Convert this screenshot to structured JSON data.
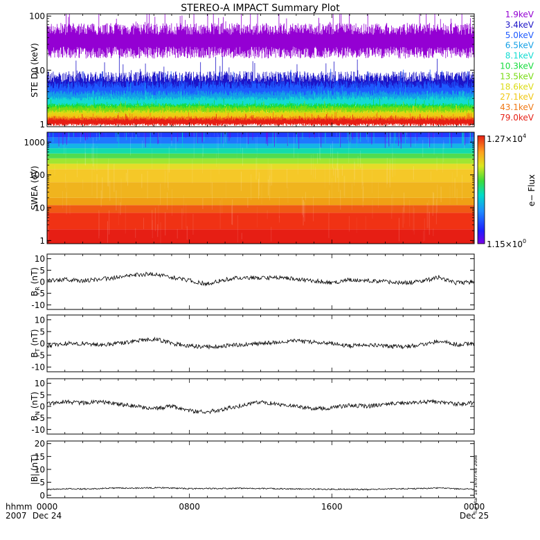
{
  "title": "STEREO-A IMPACT Summary Plot",
  "timestamp": "Tue Mar 18 16:07:48 2008",
  "time_axis": {
    "row1_label": "hhmm",
    "row2_label": "2007",
    "ticks": [
      {
        "hours": 0,
        "label": "0000",
        "sublabel": "Dec 24"
      },
      {
        "hours": 8,
        "label": "0800",
        "sublabel": ""
      },
      {
        "hours": 16,
        "label": "1600",
        "sublabel": ""
      },
      {
        "hours": 24,
        "label": "0000",
        "sublabel": "Dec 25"
      }
    ],
    "range_hours": [
      0,
      24
    ]
  },
  "colorbar": {
    "label": "e− Flux",
    "max_label": "1.27×10",
    "max_exp": "4",
    "min_label": "1.15×10",
    "min_exp": "0"
  },
  "chart_data": [
    {
      "type": "line",
      "ylabel": "STE D0 (keV)",
      "yscale": "log",
      "ylim": [
        0.9,
        110
      ],
      "yticks": [
        {
          "v": 1,
          "label": "1"
        },
        {
          "v": 10,
          "label": "10"
        },
        {
          "v": 100,
          "label": "100"
        }
      ],
      "series": [
        {
          "name": "1.9keV",
          "color": "#9400D3",
          "level": 35,
          "spread": 0.22
        },
        {
          "name": "3.4keV",
          "color": "#1c14c8",
          "level": 4.8,
          "spread": 0.2
        },
        {
          "name": "5.0keV",
          "color": "#1e5aff",
          "level": 3.8,
          "spread": 0.15
        },
        {
          "name": "6.5keV",
          "color": "#14a0e6",
          "level": 3.0,
          "spread": 0.1
        },
        {
          "name": "8.1keV",
          "color": "#14dcd2",
          "level": 2.5,
          "spread": 0.08
        },
        {
          "name": "10.3keV",
          "color": "#14dc3c",
          "level": 2.0,
          "spread": 0.06
        },
        {
          "name": "13.5keV",
          "color": "#78dc14",
          "level": 1.8,
          "spread": 0.06
        },
        {
          "name": "18.6keV",
          "color": "#dcdc14",
          "level": 1.5,
          "spread": 0.06
        },
        {
          "name": "27.1keV",
          "color": "#f0c814",
          "level": 1.35,
          "spread": 0.06
        },
        {
          "name": "43.1keV",
          "color": "#f07814",
          "level": 1.2,
          "spread": 0.05
        },
        {
          "name": "79.0keV",
          "color": "#e61e14",
          "level": 1.1,
          "spread": 0.05
        }
      ]
    },
    {
      "type": "heatmap",
      "ylabel": "SWEA (eV)",
      "yscale": "log",
      "ylim": [
        0.8,
        2000
      ],
      "yticks": [
        {
          "v": 1,
          "label": "1"
        },
        {
          "v": 10,
          "label": "10"
        },
        {
          "v": 100,
          "label": "100"
        },
        {
          "v": 1000,
          "label": "1000"
        }
      ],
      "zscale": "log",
      "zlim": [
        1.15,
        12700
      ],
      "description_bands": [
        {
          "energy_range": [
            0.8,
            12
          ],
          "level": "red"
        },
        {
          "energy_range": [
            12,
            200
          ],
          "level": "orange-yellow"
        },
        {
          "energy_range": [
            200,
            700
          ],
          "level": "green"
        },
        {
          "energy_range": [
            700,
            2000
          ],
          "level": "blue"
        }
      ]
    },
    {
      "type": "line",
      "ylabel": "B",
      "ysub": "R",
      "yunit": " (nT)",
      "ylim": [
        -12,
        12
      ],
      "yticks": [
        -10,
        -5,
        0,
        5,
        10
      ],
      "series": [
        {
          "x": [
            0,
            1,
            2,
            3,
            4,
            5,
            6,
            7,
            8,
            9,
            10,
            11,
            12,
            13,
            14,
            15,
            16,
            17,
            18,
            19,
            20,
            21,
            22,
            23,
            24
          ],
          "y": [
            0.5,
            1,
            0.5,
            1,
            2,
            3,
            3.5,
            2,
            0.5,
            -1,
            1,
            2,
            1.5,
            2,
            1,
            0.5,
            -0.5,
            1,
            0.5,
            0,
            -0.5,
            0,
            2,
            -0.5,
            0
          ]
        }
      ]
    },
    {
      "type": "line",
      "ylabel": "B",
      "ysub": "T",
      "yunit": " (nT)",
      "ylim": [
        -12,
        12
      ],
      "yticks": [
        -10,
        -5,
        0,
        5,
        10
      ],
      "series": [
        {
          "x": [
            0,
            1,
            2,
            3,
            4,
            5,
            6,
            7,
            8,
            9,
            10,
            11,
            12,
            13,
            14,
            15,
            16,
            17,
            18,
            19,
            20,
            21,
            22,
            23,
            24
          ],
          "y": [
            -1,
            0,
            0,
            -0.5,
            0,
            1,
            2,
            0,
            -1,
            -1.5,
            -1,
            -0.5,
            0,
            0.5,
            1,
            0.5,
            0,
            -1,
            -0.5,
            -1,
            -1.5,
            -0.5,
            1,
            -0.5,
            0
          ]
        }
      ]
    },
    {
      "type": "line",
      "ylabel": "B",
      "ysub": "N",
      "yunit": " (nT)",
      "ylim": [
        -12,
        12
      ],
      "yticks": [
        -10,
        -5,
        0,
        5,
        10
      ],
      "series": [
        {
          "x": [
            0,
            1,
            2,
            3,
            4,
            5,
            6,
            7,
            8,
            9,
            10,
            11,
            12,
            13,
            14,
            15,
            16,
            17,
            18,
            19,
            20,
            21,
            22,
            23,
            24
          ],
          "y": [
            1,
            2,
            1.5,
            2,
            1,
            0,
            -1,
            0,
            -2,
            -2.5,
            -1,
            0.5,
            2,
            1,
            0,
            -1,
            -0.5,
            0.5,
            0,
            1,
            1.5,
            2,
            2,
            1,
            1.5
          ]
        }
      ]
    },
    {
      "type": "line",
      "ylabel": "|B| (nT)",
      "ylim": [
        -1,
        21
      ],
      "yticks": [
        0,
        5,
        10,
        15,
        20
      ],
      "series": [
        {
          "x": [
            0,
            1,
            2,
            3,
            4,
            5,
            6,
            7,
            8,
            9,
            10,
            11,
            12,
            13,
            14,
            15,
            16,
            17,
            18,
            19,
            20,
            21,
            22,
            23,
            24
          ],
          "y": [
            2.2,
            2.5,
            2.4,
            2.6,
            2.8,
            2.7,
            2.9,
            2.8,
            2.5,
            2.6,
            2.6,
            2.7,
            2.6,
            2.5,
            2.4,
            2.4,
            2.3,
            2.3,
            2.2,
            2.4,
            2.5,
            2.6,
            2.8,
            2.5,
            2.3
          ]
        }
      ]
    }
  ]
}
